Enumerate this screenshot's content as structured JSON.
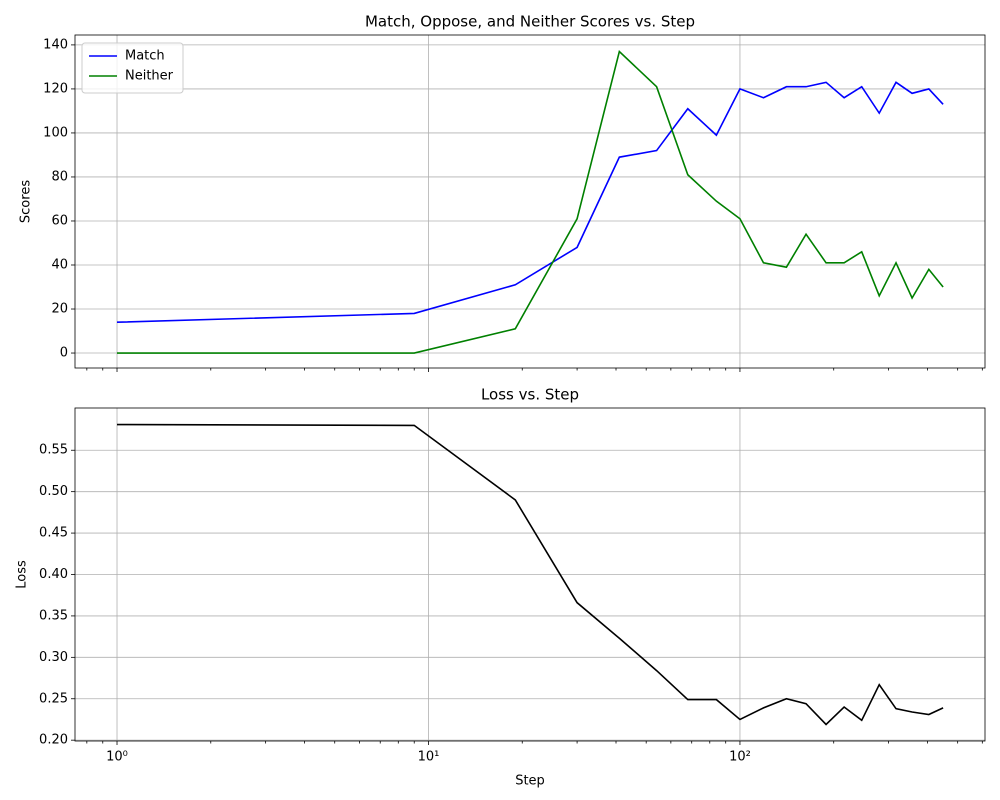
{
  "chart_data": [
    {
      "type": "line",
      "title": "Match, Oppose, and Neither Scores vs. Step",
      "ylabel": "Scores",
      "x": [
        1,
        9,
        19,
        30,
        41,
        54,
        68,
        84,
        100,
        119,
        141,
        163,
        189,
        216,
        246,
        280,
        317,
        357,
        404,
        449
      ],
      "series": [
        {
          "name": "Match",
          "color": "#0000ff",
          "values": [
            14,
            18,
            31,
            48,
            89,
            92,
            111,
            99,
            120,
            116,
            121,
            121,
            123,
            116,
            121,
            109,
            123,
            118,
            120,
            113
          ]
        },
        {
          "name": "Neither",
          "color": "#008000",
          "values": [
            0,
            0,
            11,
            61,
            137,
            121,
            81,
            69,
            61,
            41,
            39,
            54,
            41,
            41,
            46,
            26,
            41,
            25,
            38,
            30
          ]
        }
      ],
      "xscale": "log",
      "xlim": [
        0.733,
        612
      ],
      "xticks": [
        1,
        10,
        100
      ],
      "ylim": [
        -6.8,
        144.5
      ],
      "yticks": [
        0,
        20,
        40,
        60,
        80,
        100,
        120,
        140
      ],
      "grid": true,
      "legend": "upper left"
    },
    {
      "type": "line",
      "title": "Loss vs. Step",
      "xlabel": "Step",
      "ylabel": "Loss",
      "x": [
        1,
        9,
        19,
        30,
        41,
        54,
        68,
        84,
        100,
        119,
        141,
        163,
        189,
        216,
        246,
        280,
        317,
        357,
        404,
        449
      ],
      "series": [
        {
          "name": "Loss",
          "color": "#000000",
          "values": [
            0.581,
            0.58,
            0.49,
            0.366,
            0.323,
            0.284,
            0.249,
            0.249,
            0.225,
            0.239,
            0.25,
            0.244,
            0.219,
            0.24,
            0.224,
            0.267,
            0.238,
            0.234,
            0.231,
            0.239
          ]
        }
      ],
      "xscale": "log",
      "xlim": [
        0.733,
        612
      ],
      "xticks": [
        {
          "value": 1,
          "label": "10⁰"
        },
        {
          "value": 10,
          "label": "10¹"
        },
        {
          "value": 100,
          "label": "10²"
        }
      ],
      "ylim": [
        0.199,
        0.601
      ],
      "yticks": [
        {
          "value": 0.2,
          "label": "0.20"
        },
        0.25,
        {
          "value": 0.3,
          "label": "0.30"
        },
        0.35,
        {
          "value": 0.4,
          "label": "0.40"
        },
        0.45,
        {
          "value": 0.5,
          "label": "0.50"
        },
        0.55
      ],
      "grid": true
    }
  ]
}
